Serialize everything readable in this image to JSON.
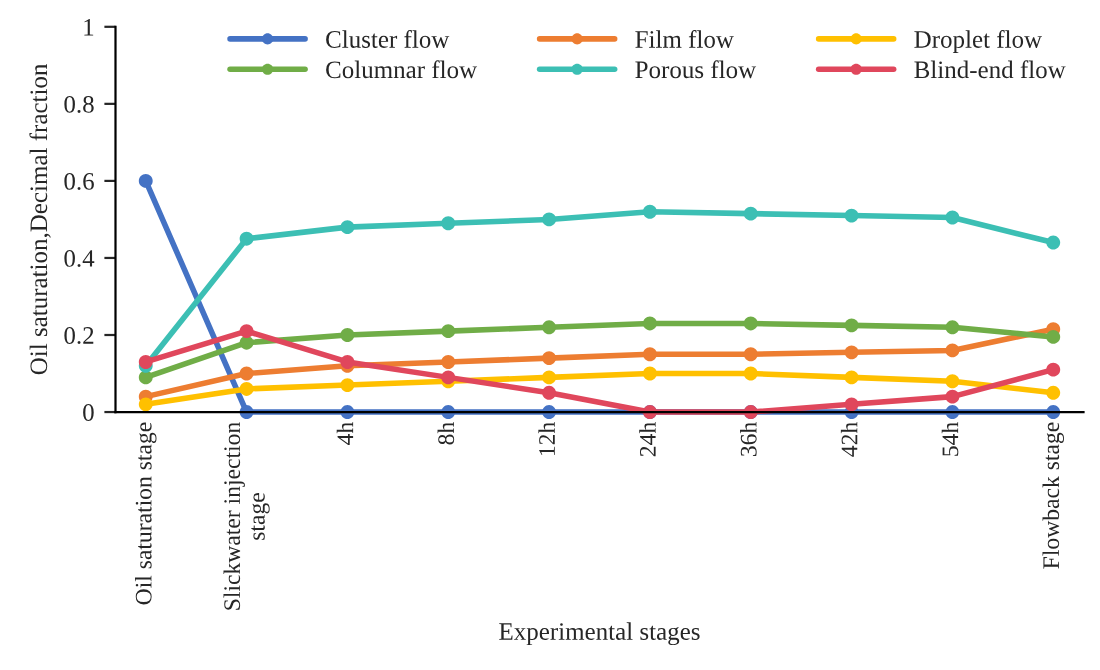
{
  "chart_data": {
    "type": "line",
    "xlabel": "Experimental stages",
    "ylabel": "Oil saturation,Decimal fraction",
    "categories": [
      "Oil saturation stage",
      "Slickwater injection\nstage",
      "4h",
      "8h",
      "12h",
      "24h",
      "36h",
      "42h",
      "54h",
      "Flowback stage"
    ],
    "series": [
      {
        "name": "Cluster flow",
        "color": "#4472c4",
        "values": [
          0.6,
          0,
          0,
          0,
          0,
          0,
          0,
          0,
          0,
          0
        ]
      },
      {
        "name": "Film flow",
        "color": "#ed7d31",
        "values": [
          0.04,
          0.1,
          0.12,
          0.13,
          0.14,
          0.15,
          0.15,
          0.155,
          0.16,
          0.215
        ]
      },
      {
        "name": "Droplet flow",
        "color": "#ffc000",
        "values": [
          0.02,
          0.06,
          0.07,
          0.08,
          0.09,
          0.1,
          0.1,
          0.09,
          0.08,
          0.05
        ]
      },
      {
        "name": "Columnar flow",
        "color": "#70ad47",
        "values": [
          0.09,
          0.18,
          0.2,
          0.21,
          0.22,
          0.23,
          0.23,
          0.225,
          0.22,
          0.195
        ]
      },
      {
        "name": "Porous flow",
        "color": "#3cbfb4",
        "values": [
          0.12,
          0.45,
          0.48,
          0.49,
          0.5,
          0.52,
          0.515,
          0.51,
          0.505,
          0.44
        ]
      },
      {
        "name": "Blind-end flow",
        "color": "#e0475c",
        "values": [
          0.13,
          0.21,
          0.13,
          0.09,
          0.05,
          0,
          0,
          0.02,
          0.04,
          0.11
        ]
      }
    ],
    "ylim": [
      0,
      1
    ],
    "yticks": [
      0,
      0.2,
      0.4,
      0.6,
      0.8,
      1
    ],
    "marker": "circle",
    "line_style": "solid",
    "legend": "top",
    "grid": false
  }
}
